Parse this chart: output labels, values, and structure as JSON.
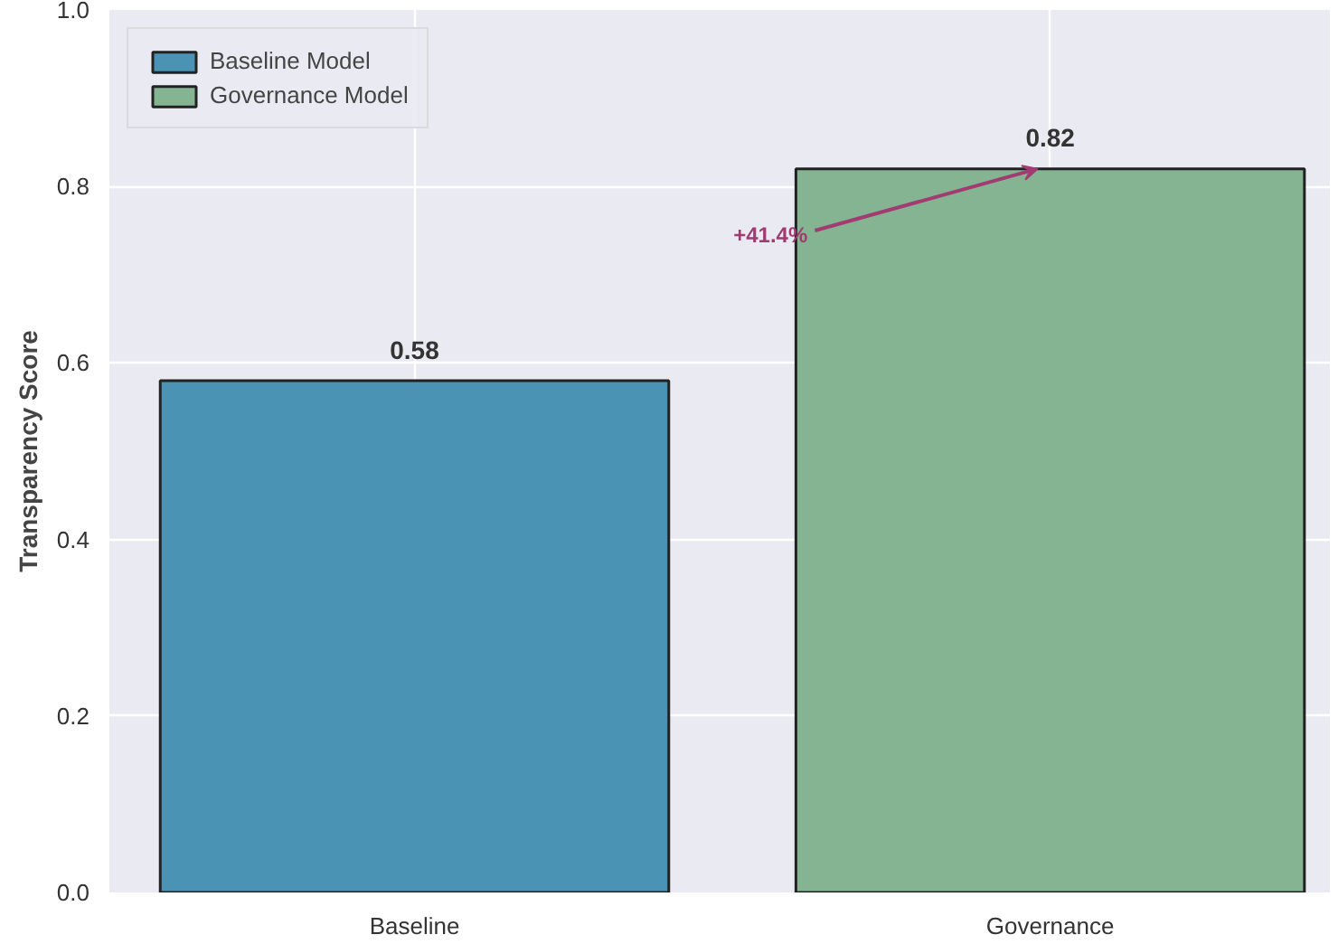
{
  "chart_data": {
    "type": "bar",
    "ylabel": "Transparency Score",
    "categories": [
      "Baseline",
      "Governance"
    ],
    "series": [
      {
        "name": "Baseline Model",
        "color": "#4a93b5",
        "values": [
          0.58,
          null
        ]
      },
      {
        "name": "Governance Model",
        "color": "#84b491",
        "values": [
          null,
          0.82
        ]
      }
    ],
    "ylim": [
      0,
      1
    ],
    "yticks": [
      {
        "value": 0,
        "label": "0.0"
      },
      {
        "value": 0.2,
        "label": "0.2"
      },
      {
        "value": 0.4,
        "label": "0.4"
      },
      {
        "value": 0.6,
        "label": "0.6"
      },
      {
        "value": 0.8,
        "label": "0.8"
      },
      {
        "value": 1,
        "label": "1.0"
      }
    ],
    "grid": true,
    "legend": "top left",
    "data_labels": true,
    "annotations": [
      {
        "text": "+41.4%",
        "x": "Governance",
        "y": 0.82
      }
    ]
  }
}
